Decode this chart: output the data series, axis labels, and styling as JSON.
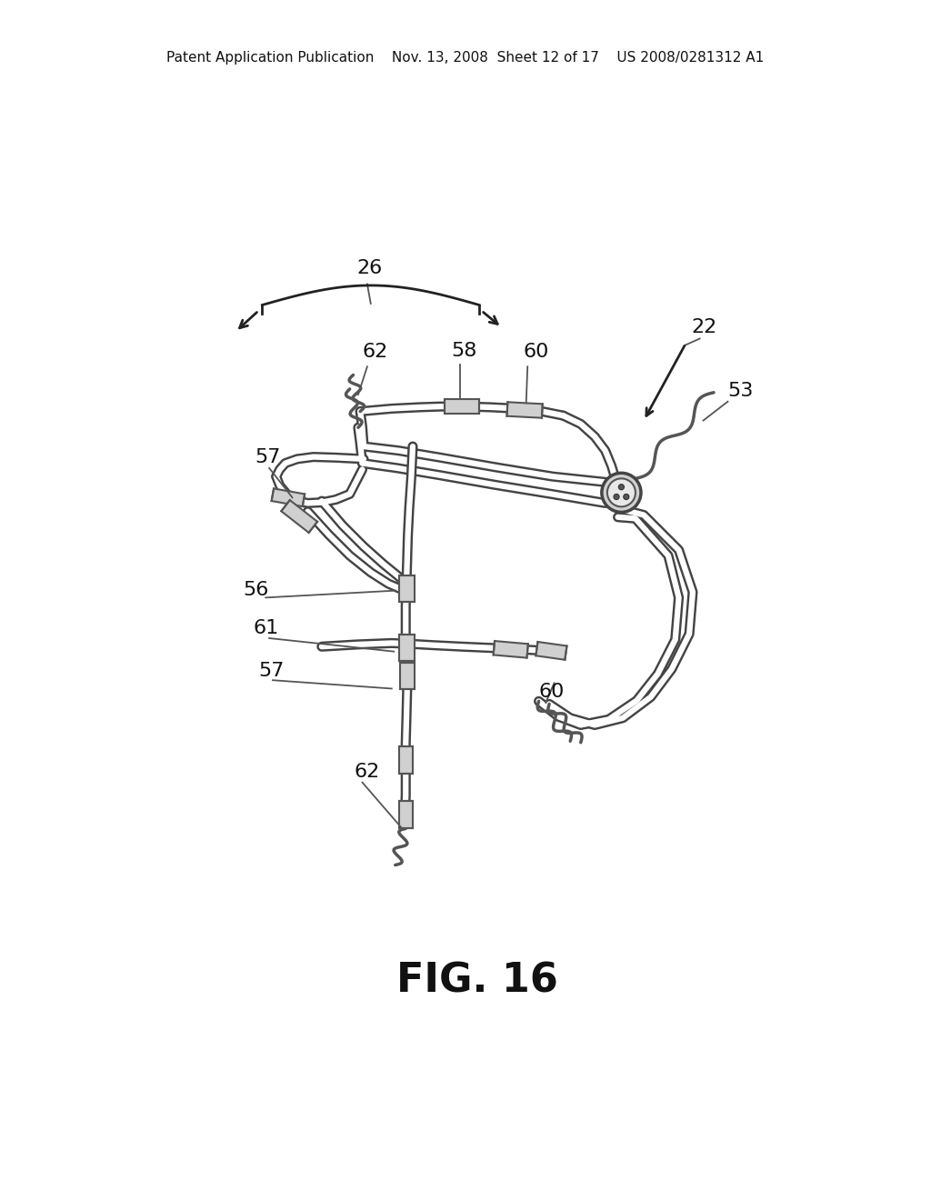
{
  "bg_color": "#ffffff",
  "header_text": "Patent Application Publication    Nov. 13, 2008  Sheet 12 of 17    US 2008/0281312 A1",
  "fig_label": "FIG. 16",
  "fig_label_fontsize": 32,
  "header_fontsize": 11,
  "line_color": "#444444",
  "tube_lw_outer": 8,
  "tube_lw_inner": 4.5
}
